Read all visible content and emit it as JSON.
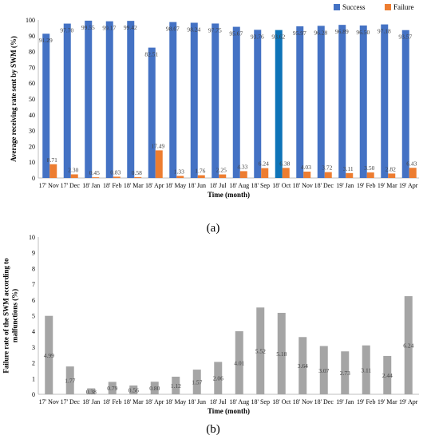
{
  "chart_data": [
    {
      "type": "bar",
      "panel_label": "(a)",
      "ylabel": "Average receiving rate sent by SWM (%)",
      "xlabel": "Time (month)",
      "ylim": [
        0,
        100
      ],
      "yticks": [
        0,
        10,
        20,
        30,
        40,
        50,
        60,
        70,
        80,
        90,
        100
      ],
      "grid": false,
      "legend_position": "top-right",
      "categories": [
        "17' Nov",
        "17' Dec",
        "18' Jan",
        "18' Feb",
        "18' Mar",
        "18' Apr",
        "18' May",
        "18' Jun",
        "18' Jul",
        "18' Aug",
        "18' Sep",
        "18' Oct",
        "18' Nov",
        "18' Dec",
        "19' Jan",
        "19' Feb",
        "19' Mar",
        "19' Apr"
      ],
      "series": [
        {
          "name": "Success",
          "color": "#4472C4",
          "values": [
            91.29,
            97.7,
            99.55,
            99.17,
            99.42,
            82.51,
            98.67,
            98.24,
            97.75,
            95.67,
            93.76,
            93.62,
            95.97,
            96.28,
            96.89,
            96.5,
            97.18,
            93.57
          ],
          "labels": [
            "91.29",
            "97.70",
            "99.55",
            "99.17",
            "99.42",
            "82.51",
            "98.67",
            "98.24",
            "97.75",
            "95.67",
            "93.76",
            "93.62",
            "95.97",
            "96.28",
            "96.89",
            "96.50",
            "97.18",
            "93.57"
          ]
        },
        {
          "name": "Failure",
          "color": "#ED7D31",
          "values": [
            8.71,
            2.3,
            0.45,
            0.83,
            0.58,
            17.49,
            1.33,
            1.76,
            2.25,
            4.33,
            6.24,
            6.38,
            4.03,
            3.72,
            3.11,
            3.5,
            2.82,
            6.43
          ],
          "labels": [
            "8.71",
            "2.30",
            "0.45",
            "0.83",
            "0.58",
            "17.49",
            "1.33",
            "1.76",
            "2.25",
            "4.33",
            "6.24",
            "6.38",
            "4.03",
            "3.72",
            "3.11",
            "3.50",
            "2.82",
            "6.43"
          ]
        }
      ],
      "highlight_color": "#0E74B8",
      "highlight_index": 11
    },
    {
      "type": "bar",
      "panel_label": "(b)",
      "ylabel": "Failure rate of the SWM according to malfunctions (%)",
      "xlabel": "Time (month)",
      "ylim": [
        0,
        10
      ],
      "yticks": [
        0,
        1,
        2,
        3,
        4,
        5,
        6,
        7,
        8,
        9,
        10
      ],
      "grid": false,
      "categories": [
        "17' Nov",
        "17' Dec",
        "18' Jan",
        "18' Feb",
        "18' Mar",
        "18' Apr",
        "18' May",
        "18' Jun",
        "18' Jul",
        "18' Aug",
        "18' Sep",
        "18' Oct",
        "18' Nov",
        "18' Dec",
        "19' Jan",
        "19' Feb",
        "19' Mar",
        "19' Apr"
      ],
      "series": [
        {
          "color": "#A5A5A5",
          "values": [
            4.99,
            1.77,
            0.38,
            0.79,
            0.56,
            0.8,
            1.12,
            1.57,
            2.06,
            4.01,
            5.52,
            5.18,
            3.64,
            3.07,
            2.73,
            3.11,
            2.44,
            6.24
          ],
          "labels": [
            "4.99",
            "1.77",
            "0.38",
            "0.79",
            "0.56",
            "0.80",
            "1.12",
            "1.57",
            "2.06",
            "4.01",
            "5.52",
            "5.18",
            "3.64",
            "3.07",
            "2.73",
            "3.11",
            "2.44",
            "6.24"
          ]
        }
      ]
    }
  ]
}
